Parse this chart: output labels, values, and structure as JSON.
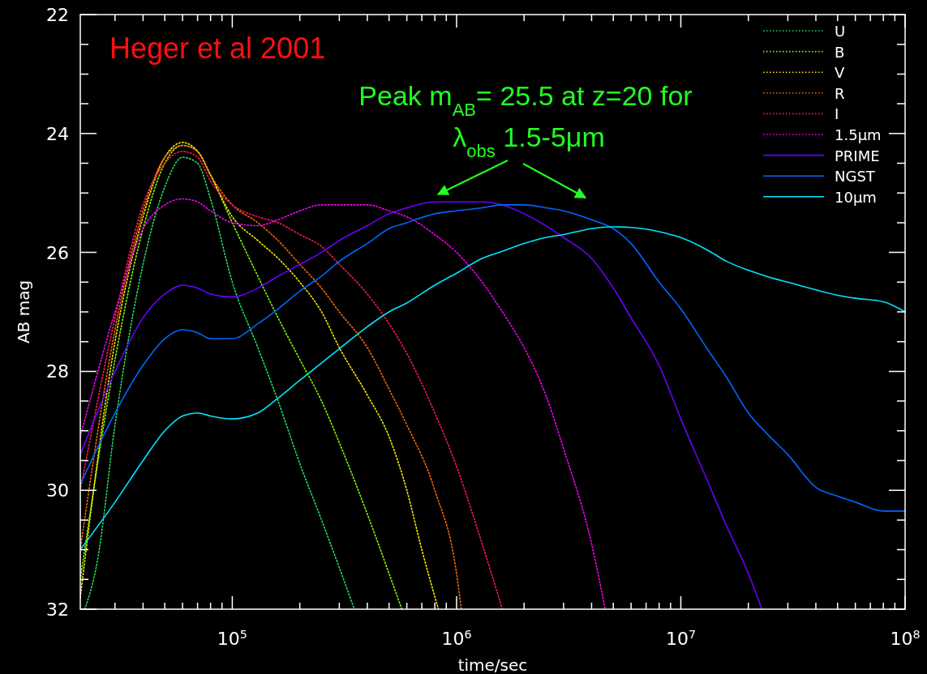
{
  "chart_data": {
    "type": "line",
    "xlabel": "time/sec",
    "ylabel": "AB mag",
    "log": "x",
    "grid": false,
    "legend": "top right",
    "xlim": [
      21000,
      100000000
    ],
    "xticks": [
      {
        "value": 30000,
        "label": null
      },
      {
        "value": 40000,
        "label": null
      },
      {
        "value": 50000,
        "label": null
      },
      {
        "value": 60000,
        "label": null
      },
      {
        "value": 70000,
        "label": null
      },
      {
        "value": 80000,
        "label": null
      },
      {
        "value": 90000,
        "label": null
      },
      {
        "value": 100000,
        "label": "10$^{5}$"
      },
      {
        "value": 200000,
        "label": null
      },
      {
        "value": 300000,
        "label": null
      },
      {
        "value": 400000,
        "label": null
      },
      {
        "value": 500000,
        "label": null
      },
      {
        "value": 600000,
        "label": null
      },
      {
        "value": 700000,
        "label": null
      },
      {
        "value": 800000,
        "label": null
      },
      {
        "value": 900000,
        "label": null
      },
      {
        "value": 1000000,
        "label": "10$^{6}$"
      },
      {
        "value": 2000000,
        "label": null
      },
      {
        "value": 3000000,
        "label": null
      },
      {
        "value": 4000000,
        "label": null
      },
      {
        "value": 5000000,
        "label": null
      },
      {
        "value": 6000000,
        "label": null
      },
      {
        "value": 7000000,
        "label": null
      },
      {
        "value": 8000000,
        "label": null
      },
      {
        "value": 9000000,
        "label": null
      },
      {
        "value": 10000000,
        "label": "10$^{7}$"
      },
      {
        "value": 20000000,
        "label": null
      },
      {
        "value": 30000000,
        "label": null
      },
      {
        "value": 40000000,
        "label": null
      },
      {
        "value": 50000000,
        "label": null
      },
      {
        "value": 60000000,
        "label": null
      },
      {
        "value": 70000000,
        "label": null
      },
      {
        "value": 80000000,
        "label": null
      },
      {
        "value": 90000000,
        "label": null
      },
      {
        "value": 100000000,
        "label": "10$^{8}$"
      }
    ],
    "ylim": [
      32,
      22
    ],
    "yticks": [
      22,
      {
        "value": 22.5,
        "label": null
      },
      {
        "value": 23,
        "label": null
      },
      {
        "value": 23.5,
        "label": null
      },
      24,
      {
        "value": 24.5,
        "label": null
      },
      {
        "value": 25,
        "label": null
      },
      {
        "value": 25.5,
        "label": null
      },
      26,
      {
        "value": 26.5,
        "label": null
      },
      {
        "value": 27,
        "label": null
      },
      {
        "value": 27.5,
        "label": null
      },
      28,
      {
        "value": 28.5,
        "label": null
      },
      {
        "value": 29,
        "label": null
      },
      {
        "value": 29.5,
        "label": null
      },
      30,
      {
        "value": 30.5,
        "label": null
      },
      {
        "value": 31,
        "label": null
      },
      {
        "value": 31.5,
        "label": null
      },
      32
    ],
    "annotations": [
      "Heger et al 2001",
      "Peak m$_{AB}$= 25.5 at z=20 for",
      "λ$_{obs}$ 1.5-5μm"
    ],
    "series": [
      {
        "name": "U",
        "color": "#20e060",
        "line_style": "dotted",
        "x": [
          22000,
          25000,
          30000,
          40000,
          50000,
          60000,
          70000,
          80000,
          100000,
          130000,
          160000,
          200000,
          250000,
          300000,
          350000
        ],
        "values": [
          32,
          31.2,
          28.9,
          26.2,
          24.9,
          24.4,
          24.5,
          25.1,
          26.5,
          27.6,
          28.5,
          29.55,
          30.5,
          31.3,
          32
        ]
      },
      {
        "name": "B",
        "color": "#80ff00",
        "line_style": "dotted",
        "x": [
          21000,
          30000,
          40000,
          50000,
          60000,
          70000,
          80000,
          100000,
          130000,
          160000,
          200000,
          250000,
          300000,
          400000,
          500000,
          570000
        ],
        "values": [
          31.5,
          27.8,
          25.6,
          24.5,
          24.2,
          24.3,
          24.7,
          25.5,
          26.4,
          27.1,
          27.8,
          28.5,
          29.2,
          30.4,
          31.4,
          32
        ]
      },
      {
        "name": "V",
        "color": "#ffee00",
        "line_style": "dotted",
        "x": [
          21000,
          30000,
          40000,
          50000,
          60000,
          70000,
          80000,
          100000,
          130000,
          160000,
          200000,
          250000,
          300000,
          400000,
          500000,
          600000,
          700000,
          830000
        ],
        "values": [
          31.8,
          27.5,
          25.4,
          24.4,
          24.15,
          24.3,
          24.7,
          25.4,
          25.8,
          26.1,
          26.5,
          27.0,
          27.6,
          28.4,
          29.1,
          30.0,
          31.0,
          32
        ]
      },
      {
        "name": "R",
        "color": "#ff6a00",
        "line_style": "dotted",
        "x": [
          21000,
          30000,
          40000,
          50000,
          60000,
          70000,
          80000,
          100000,
          130000,
          160000,
          200000,
          250000,
          300000,
          400000,
          500000,
          600000,
          800000,
          1000000,
          1050000
        ],
        "values": [
          31.0,
          27.3,
          25.3,
          24.4,
          24.2,
          24.3,
          24.7,
          25.2,
          25.5,
          25.8,
          26.2,
          26.6,
          27.0,
          27.6,
          28.3,
          28.9,
          30.0,
          31.4,
          32
        ]
      },
      {
        "name": "I",
        "color": "#ff1a50",
        "line_style": "dotted",
        "x": [
          21000,
          30000,
          40000,
          50000,
          60000,
          70000,
          80000,
          100000,
          130000,
          160000,
          200000,
          250000,
          300000,
          400000,
          500000,
          600000,
          800000,
          1000000,
          1300000,
          1600000
        ],
        "values": [
          30.0,
          27.1,
          25.2,
          24.5,
          24.3,
          24.4,
          24.8,
          25.2,
          25.4,
          25.5,
          25.7,
          25.9,
          26.2,
          26.7,
          27.2,
          27.7,
          28.7,
          29.6,
          30.9,
          32
        ]
      },
      {
        "name": "1.5μm",
        "color": "#ff00ff",
        "line_style": "dotted",
        "x": [
          21000,
          30000,
          40000,
          50000,
          60000,
          70000,
          80000,
          100000,
          130000,
          160000,
          200000,
          250000,
          300000,
          400000,
          500000,
          600000,
          800000,
          1000000,
          1300000,
          1600000,
          2000000,
          2500000,
          3000000,
          4000000,
          4600000
        ],
        "values": [
          29.1,
          27.0,
          25.6,
          25.2,
          25.1,
          25.15,
          25.3,
          25.5,
          25.55,
          25.45,
          25.3,
          25.2,
          25.2,
          25.2,
          25.3,
          25.4,
          25.7,
          26.0,
          26.5,
          27.0,
          27.6,
          28.4,
          29.3,
          30.9,
          32
        ]
      },
      {
        "name": "PRIME",
        "color": "#6a00ff",
        "line_style": "solid",
        "x": [
          21000,
          30000,
          40000,
          50000,
          60000,
          70000,
          80000,
          100000,
          130000,
          160000,
          200000,
          250000,
          300000,
          400000,
          500000,
          600000,
          800000,
          1000000,
          1300000,
          1600000,
          2000000,
          2500000,
          3000000,
          4000000,
          5000000,
          6000000,
          8000000,
          10000000,
          13000000,
          16000000,
          20000000,
          23000000
        ],
        "values": [
          29.4,
          28.0,
          27.1,
          26.7,
          26.55,
          26.6,
          26.7,
          26.75,
          26.6,
          26.4,
          26.2,
          26.0,
          25.8,
          25.55,
          25.35,
          25.25,
          25.15,
          25.15,
          25.15,
          25.2,
          25.35,
          25.55,
          25.75,
          26.1,
          26.6,
          27.1,
          27.9,
          28.8,
          29.8,
          30.6,
          31.4,
          32
        ]
      },
      {
        "name": "NGST",
        "color": "#0066ff",
        "line_style": "solid",
        "x": [
          21000,
          30000,
          40000,
          50000,
          60000,
          70000,
          80000,
          100000,
          130000,
          160000,
          200000,
          250000,
          300000,
          400000,
          500000,
          600000,
          800000,
          1000000,
          1300000,
          1600000,
          2000000,
          2500000,
          3000000,
          4000000,
          5000000,
          6000000,
          8000000,
          10000000,
          13000000,
          16000000,
          20000000,
          25000000,
          30000000,
          40000000,
          50000000,
          60000000,
          80000000,
          100000000
        ],
        "values": [
          29.9,
          28.7,
          27.9,
          27.45,
          27.3,
          27.35,
          27.45,
          27.45,
          27.2,
          26.95,
          26.65,
          26.4,
          26.15,
          25.85,
          25.6,
          25.5,
          25.35,
          25.3,
          25.25,
          25.2,
          25.2,
          25.25,
          25.3,
          25.45,
          25.6,
          25.85,
          26.5,
          26.95,
          27.6,
          28.1,
          28.7,
          29.1,
          29.4,
          29.95,
          30.1,
          30.2,
          30.35,
          30.35
        ]
      },
      {
        "name": "10μm",
        "color": "#00e5ff",
        "line_style": "solid",
        "x": [
          21000,
          30000,
          40000,
          50000,
          60000,
          70000,
          80000,
          100000,
          130000,
          160000,
          200000,
          250000,
          300000,
          400000,
          500000,
          600000,
          800000,
          1000000,
          1300000,
          1600000,
          2000000,
          2500000,
          3000000,
          4000000,
          5000000,
          6000000,
          8000000,
          10000000,
          13000000,
          16000000,
          20000000,
          25000000,
          30000000,
          40000000,
          50000000,
          60000000,
          80000000,
          100000000
        ],
        "values": [
          31.0,
          30.2,
          29.5,
          29.0,
          28.75,
          28.7,
          28.75,
          28.8,
          28.7,
          28.45,
          28.15,
          27.86,
          27.62,
          27.25,
          27.0,
          26.85,
          26.55,
          26.35,
          26.1,
          25.98,
          25.85,
          25.75,
          25.7,
          25.6,
          25.57,
          25.58,
          25.65,
          25.75,
          25.95,
          26.15,
          26.3,
          26.42,
          26.5,
          26.63,
          26.72,
          26.77,
          26.83,
          27.0
        ]
      }
    ]
  }
}
